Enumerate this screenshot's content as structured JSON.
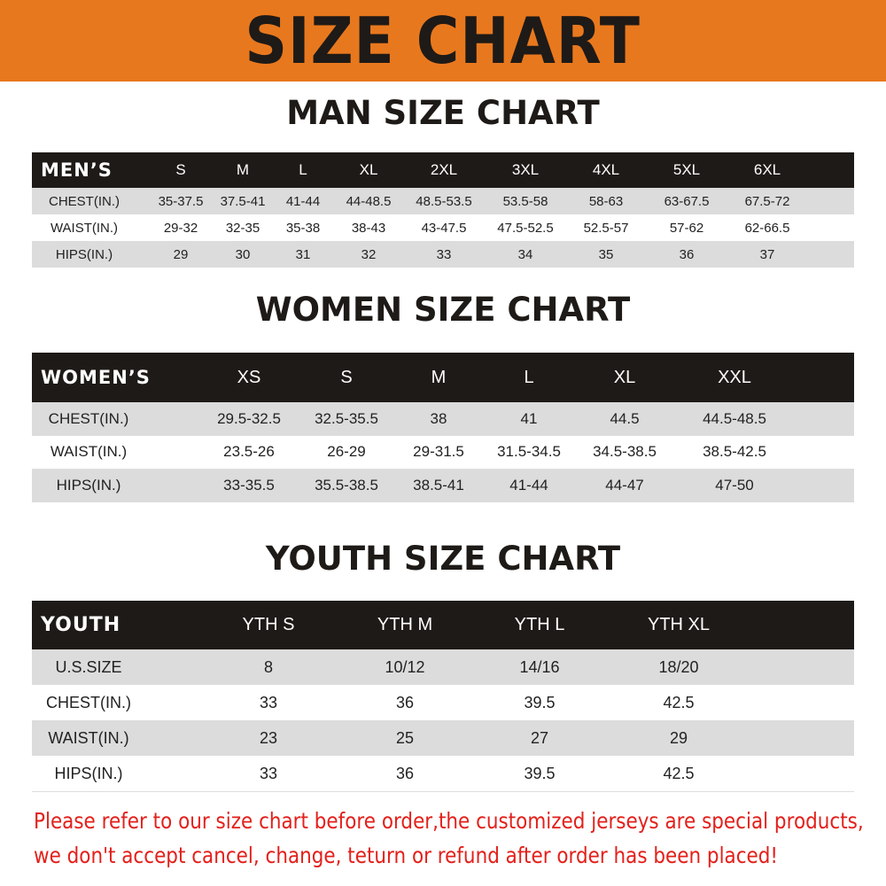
{
  "banner_title": "SIZE CHART",
  "men": {
    "title": "MAN SIZE CHART",
    "header": [
      "MEN’S",
      "S",
      "M",
      "L",
      "XL",
      "2XL",
      "3XL",
      "4XL",
      "5XL",
      "6XL"
    ],
    "rows": [
      [
        "CHEST(IN.)",
        "35-37.5",
        "37.5-41",
        "41-44",
        "44-48.5",
        "48.5-53.5",
        "53.5-58",
        "58-63",
        "63-67.5",
        "67.5-72"
      ],
      [
        "WAIST(IN.)",
        "29-32",
        "32-35",
        "35-38",
        "38-43",
        "43-47.5",
        "47.5-52.5",
        "52.5-57",
        "57-62",
        "62-66.5"
      ],
      [
        "HIPS(IN.)",
        "29",
        "30",
        "31",
        "32",
        "33",
        "34",
        "35",
        "36",
        "37"
      ]
    ]
  },
  "women": {
    "title": "WOMEN SIZE CHART",
    "header": [
      "WOMEN’S",
      "XS",
      "S",
      "M",
      "L",
      "XL",
      "XXL"
    ],
    "rows": [
      [
        "CHEST(IN.)",
        "29.5-32.5",
        "32.5-35.5",
        "38",
        "41",
        "44.5",
        "44.5-48.5"
      ],
      [
        "WAIST(IN.)",
        "23.5-26",
        "26-29",
        "29-31.5",
        "31.5-34.5",
        "34.5-38.5",
        "38.5-42.5"
      ],
      [
        "HIPS(IN.)",
        "33-35.5",
        "35.5-38.5",
        "38.5-41",
        "41-44",
        "44-47",
        "47-50"
      ]
    ]
  },
  "youth": {
    "title": "YOUTH SIZE CHART",
    "header": [
      "YOUTH",
      "YTH S",
      "YTH M",
      "YTH L",
      "YTH XL"
    ],
    "rows": [
      [
        "U.S.SIZE",
        "8",
        "10/12",
        "14/16",
        "18/20"
      ],
      [
        "CHEST(IN.)",
        "33",
        "36",
        "39.5",
        "42.5"
      ],
      [
        "WAIST(IN.)",
        "23",
        "25",
        "27",
        "29"
      ],
      [
        "HIPS(IN.)",
        "33",
        "36",
        "39.5",
        "42.5"
      ]
    ]
  },
  "notice": {
    "line1": "Please refer to our size chart before order,the customized jerseys are special products,",
    "line2": "we don't accept cancel, change, teturn or refund after order has been placed!"
  },
  "colors": {
    "banner": "#E8781E",
    "header_row": "#1e1a17",
    "stripe": "#dcdcdc",
    "notice": "#e3201b"
  }
}
